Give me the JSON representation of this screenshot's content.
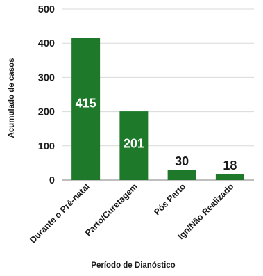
{
  "chart_data": {
    "type": "bar",
    "categories": [
      "Durante o Pré-natal",
      "Parto/Curetagem",
      "Pós Parto",
      "Ign/Não Realizado"
    ],
    "values": [
      415,
      201,
      30,
      18
    ],
    "value_labels": [
      "415",
      "201",
      "30",
      "18"
    ],
    "xlabel": "Período de Dianóstico",
    "ylabel": "Acumulado de casos",
    "ylim": [
      0,
      500
    ],
    "yticks": [
      0,
      100,
      200,
      300,
      400,
      500
    ],
    "grid": true,
    "legend": "none",
    "bar_color": "#1e7a2a",
    "grid_color": "#d9d9d9",
    "axis_color": "#7f7f7f",
    "label_color_inside": "#ffffff",
    "label_color_outside": "#1a1a1a"
  }
}
